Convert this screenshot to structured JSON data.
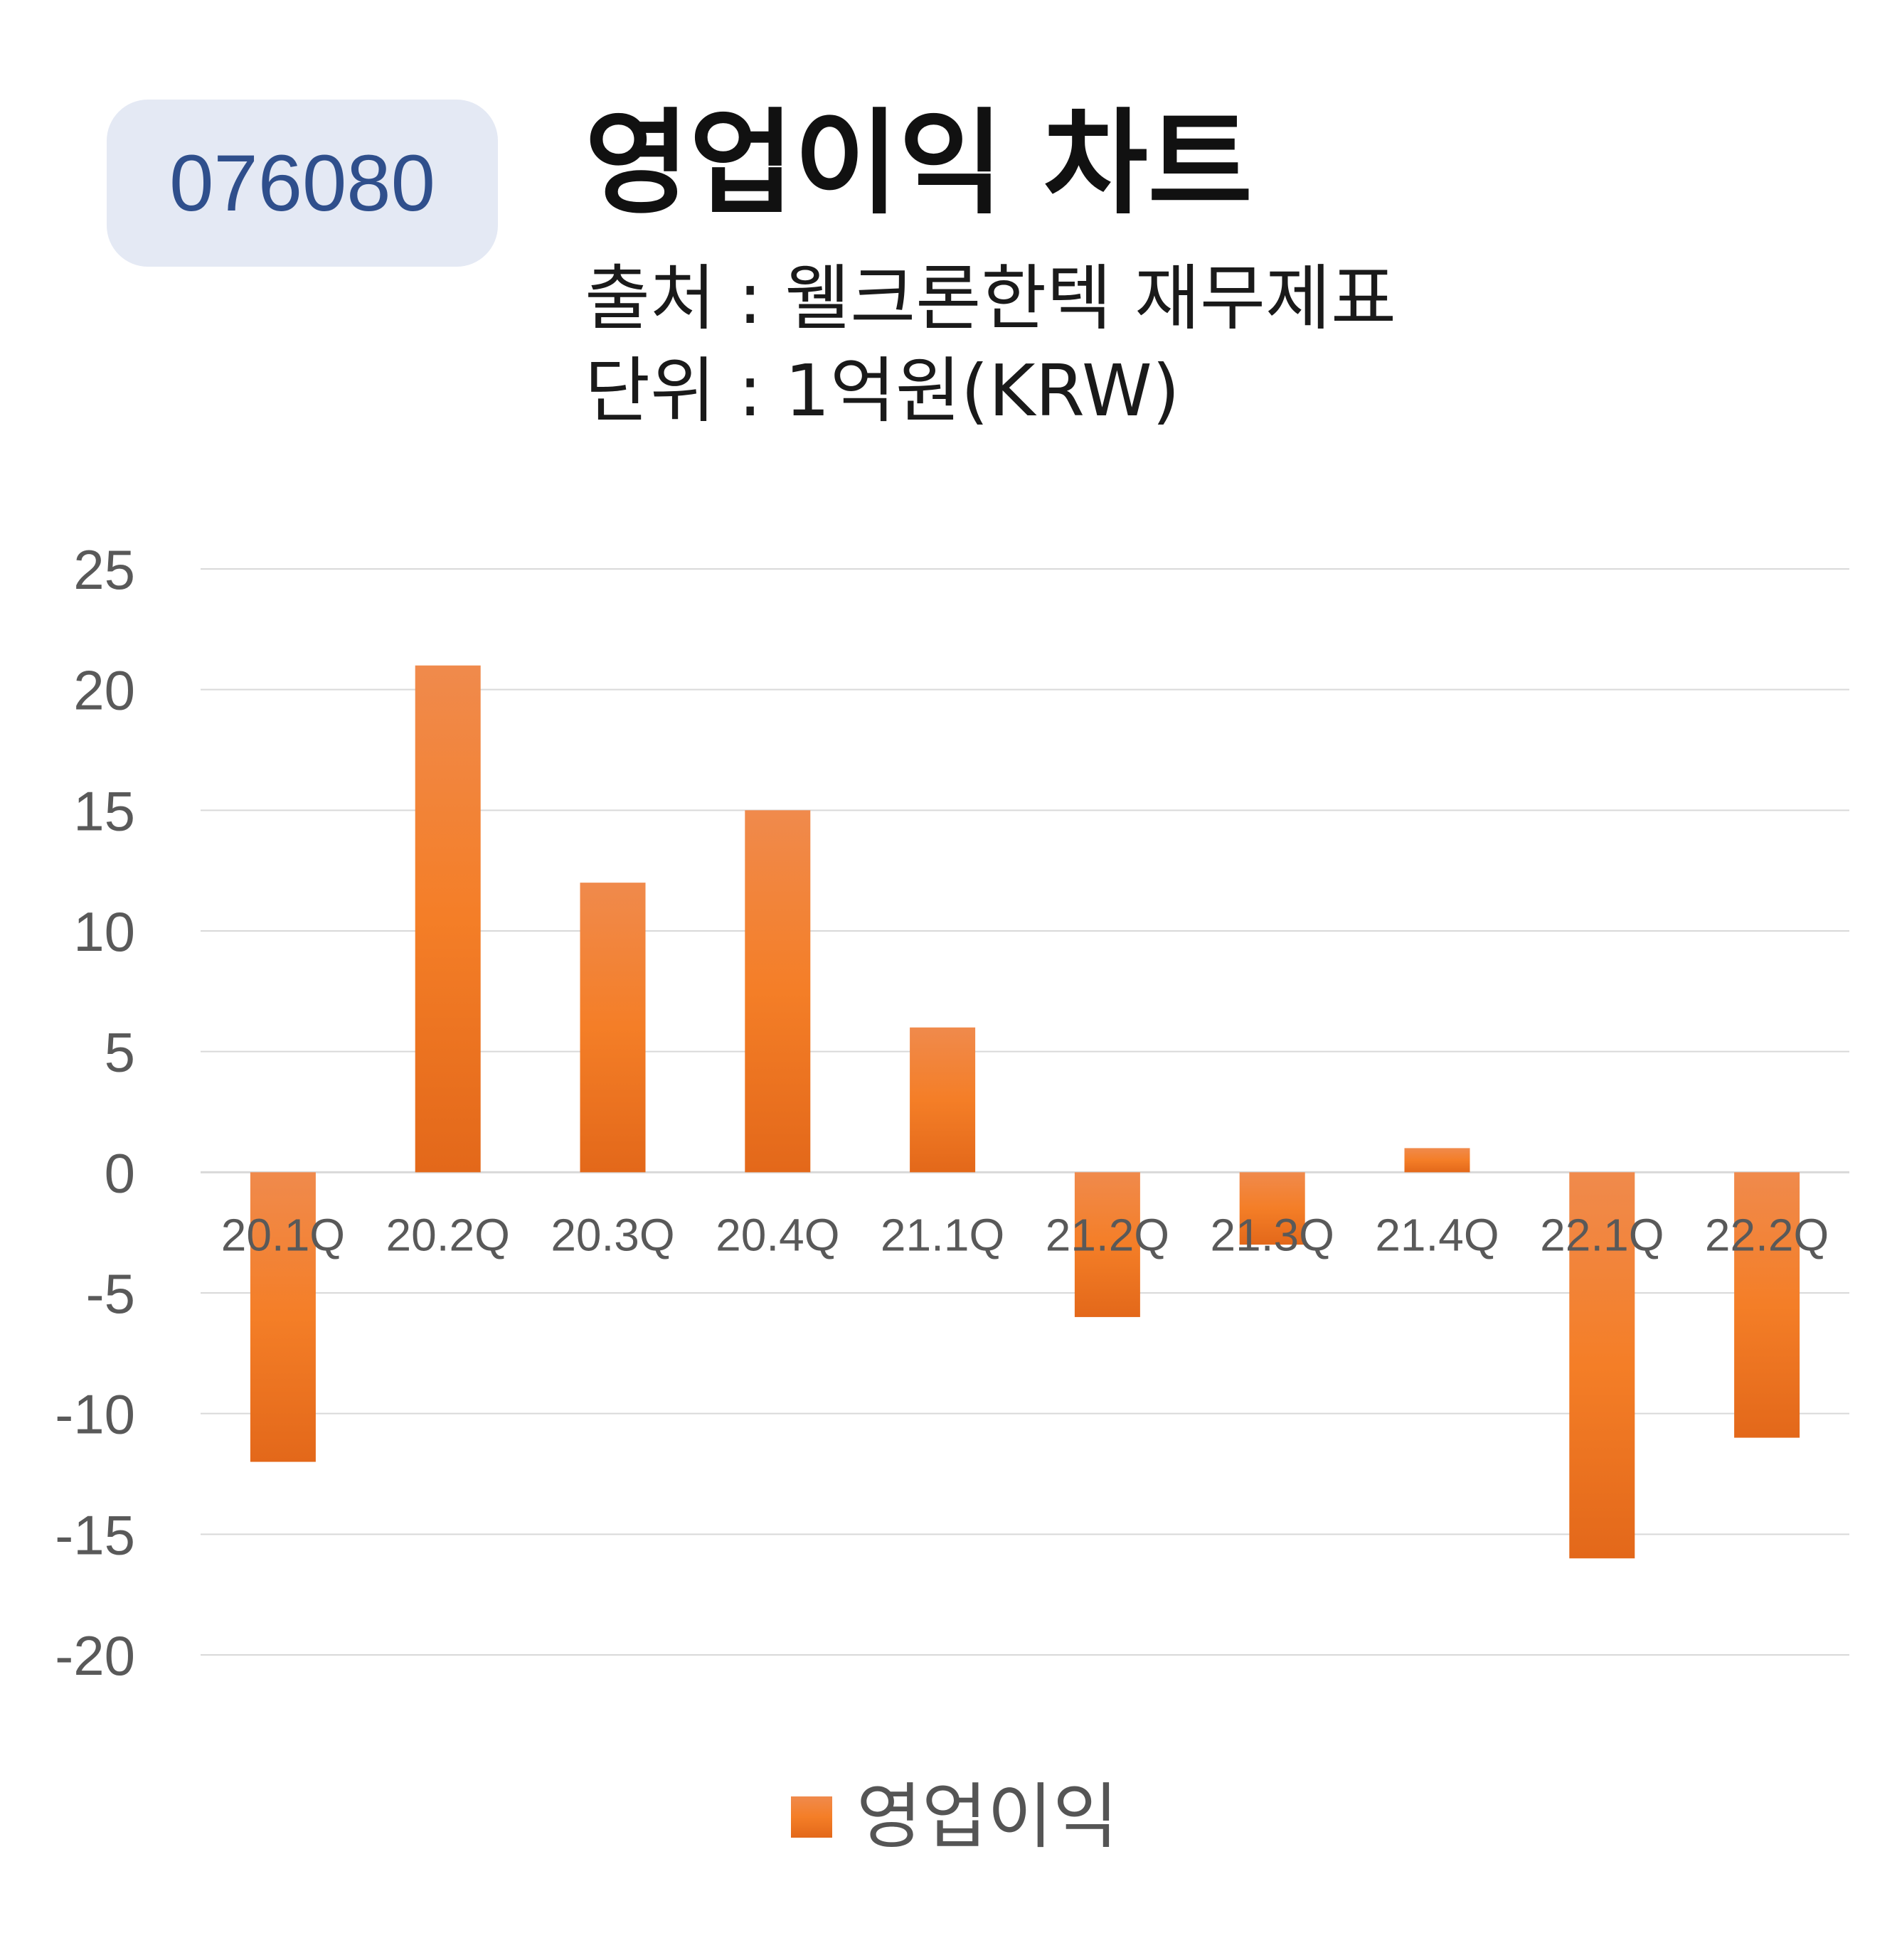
{
  "ticker": "076080",
  "header": {
    "title": "영업이익 차트",
    "source": "출처 : 웰크론한텍 재무제표",
    "unit": "단위 : 1억원(KRW)"
  },
  "colors": {
    "bar_top": "#f08a4c",
    "bar_mid": "#f47e27",
    "bar_bottom": "#e3681a",
    "grid": "#d9d9d9",
    "axis_text": "#595959",
    "badge_bg": "#e4e9f4",
    "badge_text": "#2f4f8c"
  },
  "chart_data": {
    "type": "bar",
    "categories": [
      "20.1Q",
      "20.2Q",
      "20.3Q",
      "20.4Q",
      "21.1Q",
      "21.2Q",
      "21.3Q",
      "21.4Q",
      "22.1Q",
      "22.2Q"
    ],
    "series": [
      {
        "name": "영업이익",
        "values": [
          -12,
          21,
          12,
          15,
          6,
          -6,
          -3,
          1,
          -16,
          -11
        ]
      }
    ],
    "ylim": [
      -20,
      25
    ],
    "yticks": [
      25,
      20,
      15,
      10,
      5,
      0,
      -5,
      -10,
      -15,
      -20
    ],
    "grid": true,
    "legend": "bottom"
  }
}
